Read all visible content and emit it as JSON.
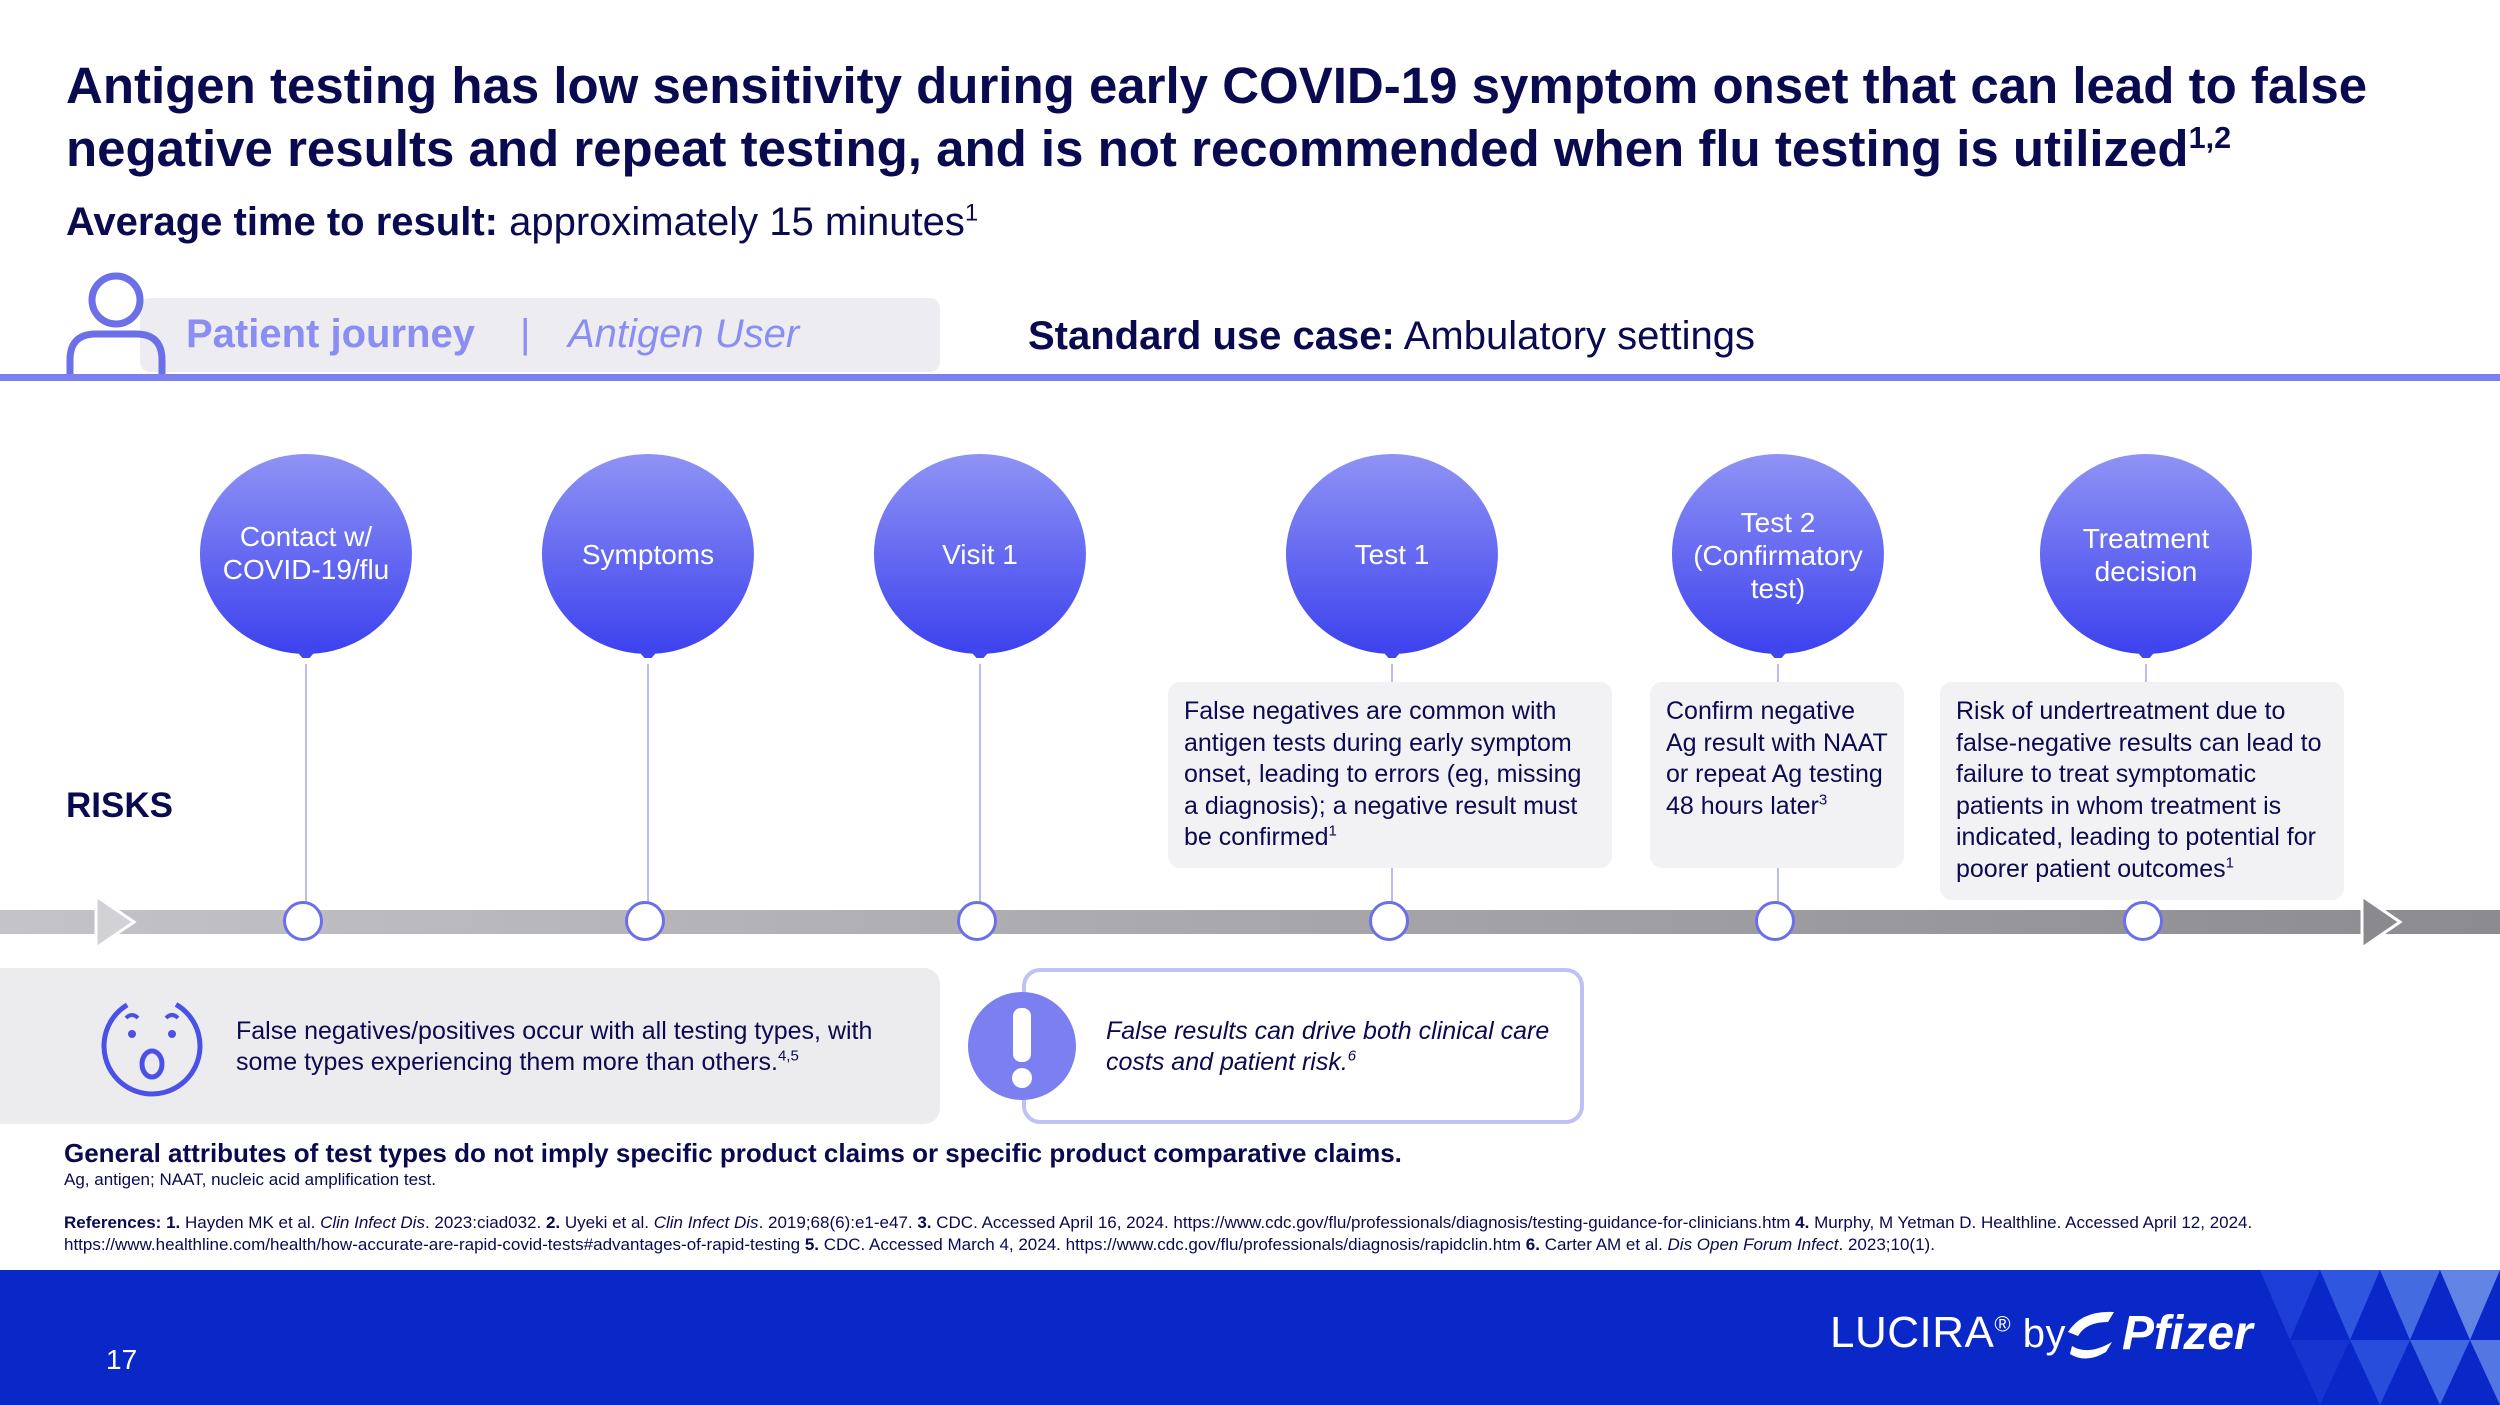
{
  "header": {
    "title": "Antigen testing has low sensitivity during early COVID-19 symptom onset that can lead to false negative results and repeat testing, and is not recommended when flu testing is utilized",
    "title_sup": "1,2",
    "subtitle_bold": "Average time to result:",
    "subtitle_rest": " approximately 15 minutes",
    "subtitle_sup": "1"
  },
  "journey": {
    "label": "Patient journey",
    "separator": "|",
    "user": "Antigen User",
    "usecase_bold": "Standard use case:",
    "usecase_rest": " Ambulatory settings"
  },
  "risks_label": "RISKS",
  "steps": [
    {
      "line1": "Contact w/",
      "line2": "COVID-19/flu",
      "line3": ""
    },
    {
      "line1": "Symptoms",
      "line2": "",
      "line3": ""
    },
    {
      "line1": "Visit 1",
      "line2": "",
      "line3": ""
    },
    {
      "line1": "Test 1",
      "line2": "",
      "line3": ""
    },
    {
      "line1": "Test 2",
      "line2": "(Confirmatory",
      "line3": "test)"
    },
    {
      "line1": "Treatment",
      "line2": "decision",
      "line3": ""
    }
  ],
  "risk_boxes": [
    {
      "text": "False negatives are common with antigen tests during early symptom onset, leading to errors (eg, missing a diagnosis); a negative result must be confirmed",
      "sup": "1"
    },
    {
      "text": "Confirm negative Ag result with NAAT or repeat Ag testing 48 hours later",
      "sup": "3"
    },
    {
      "text": "Risk of undertreatment due to false-negative results can lead to failure to treat symptomatic patients in whom treatment is indicated, leading to potential for poorer patient outcomes",
      "sup": "1"
    }
  ],
  "cards": {
    "grey_text": "False negatives/positives occur with all testing types, with some types experiencing them more than others.",
    "grey_sup": "4,5",
    "outline_text": "False results can drive both clinical care costs and patient risk.",
    "outline_sup": "6"
  },
  "disclaimer": "General attributes of test types do not imply specific product claims or specific product comparative claims.",
  "abbrev": "Ag, antigen; NAAT, nucleic acid amplification test.",
  "references": {
    "label": "References:",
    "r1n": "1.",
    "r1a": " Hayden MK et al. ",
    "r1j": "Clin Infect Dis",
    "r1b": ". 2023:ciad032. ",
    "r2n": "2.",
    "r2a": " Uyeki et al. ",
    "r2j": "Clin Infect Dis",
    "r2b": ". 2019;68(6):e1-e47. ",
    "r3n": "3.",
    "r3a": " CDC. Accessed April 16, 2024. https://www.cdc.gov/flu/professionals/diagnosis/testing-guidance-for-clinicians.htm ",
    "r4n": "4.",
    "r4a": " Murphy, M Yetman D. Healthline. Accessed April 12, 2024. https://www.healthline.com/health/how-accurate-are-rapid-covid-tests#advantages-of-rapid-testing ",
    "r5n": "5.",
    "r5a": " CDC. Accessed March 4, 2024. https://www.cdc.gov/flu/professionals/diagnosis/rapidclin.htm ",
    "r6n": "6.",
    "r6a": " Carter AM et al. ",
    "r6j": "Dis Open Forum Infect",
    "r6b": ". 2023;10(1)."
  },
  "footer": {
    "page_number": "17",
    "brand": "LUCIRA",
    "brand_sup": "®",
    "by": " by",
    "partner": "Pfizer"
  },
  "colors": {
    "title": "#0a0a50",
    "accent": "#7b7ff0",
    "bubble_top": "#8f93f5",
    "bubble_bottom": "#3c41ee",
    "footer": "#0a27c8"
  }
}
